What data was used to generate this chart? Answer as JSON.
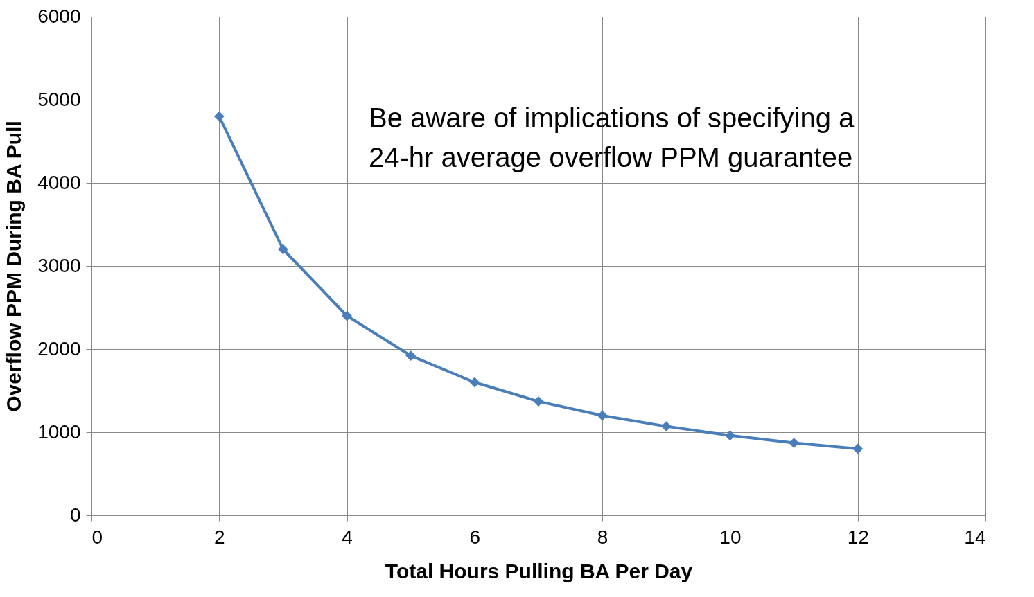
{
  "chart_data": {
    "type": "line",
    "xlabel": "Total Hours Pulling BA Per Day",
    "ylabel": "Overflow PPM During BA Pull",
    "x": [
      2,
      3,
      4,
      5,
      6,
      7,
      8,
      9,
      10,
      11,
      12
    ],
    "series": [
      {
        "color": "#4a7ebb",
        "values": [
          4800,
          3200,
          2400,
          1920,
          1600,
          1370,
          1200,
          1070,
          960,
          870,
          800
        ]
      }
    ],
    "xlim": [
      0,
      14
    ],
    "xticks": [
      0,
      2,
      4,
      6,
      8,
      10,
      12,
      14
    ],
    "ylim": [
      0,
      6000
    ],
    "yticks": [
      0,
      1000,
      2000,
      3000,
      4000,
      5000,
      6000
    ],
    "grid": true,
    "marker": "diamond",
    "line_style": "solid",
    "annotations": [
      "Be aware of implications of specifying a 24-hr average overflow PPM guarantee"
    ]
  }
}
